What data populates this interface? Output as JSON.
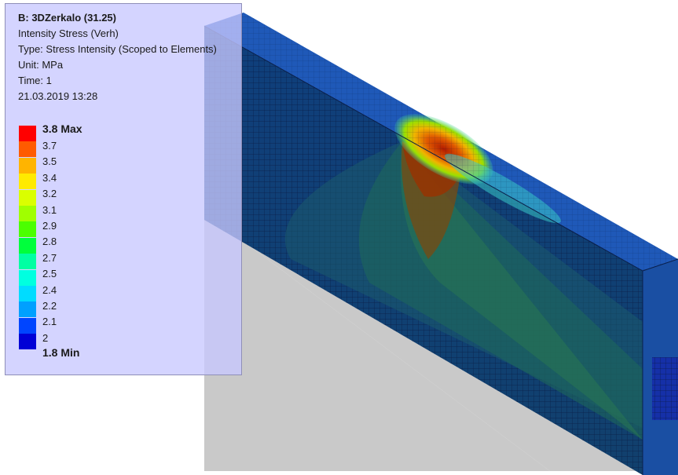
{
  "result": {
    "title": "B: 3DZerkalo (31.25)",
    "name": "Intensity Stress (Verh)",
    "type_line": "Type: Stress Intensity (Scoped to Elements)",
    "unit_line": "Unit: MPa",
    "time_line": "Time: 1",
    "date_line": "21.03.2019 13:28"
  },
  "legend": {
    "colors": [
      "#ff0000",
      "#ff5b00",
      "#ffb400",
      "#ffea00",
      "#daff00",
      "#a0ff00",
      "#4bff00",
      "#00ff3c",
      "#00ffa3",
      "#00ffe0",
      "#00dcff",
      "#00a0ff",
      "#0045ff",
      "#0000d6"
    ],
    "max_label": "3.8 Max",
    "min_label": "1.8 Min",
    "levels": [
      "3.7",
      "3.5",
      "3.4",
      "3.2",
      "3.1",
      "2.9",
      "2.8",
      "2.7",
      "2.5",
      "2.4",
      "2.2",
      "2.1",
      "2"
    ]
  },
  "model": {
    "beam_base_color": "#1f59b8",
    "beam_shadow_color": "#0c2d66",
    "ground_color": "#c9c9c9"
  }
}
